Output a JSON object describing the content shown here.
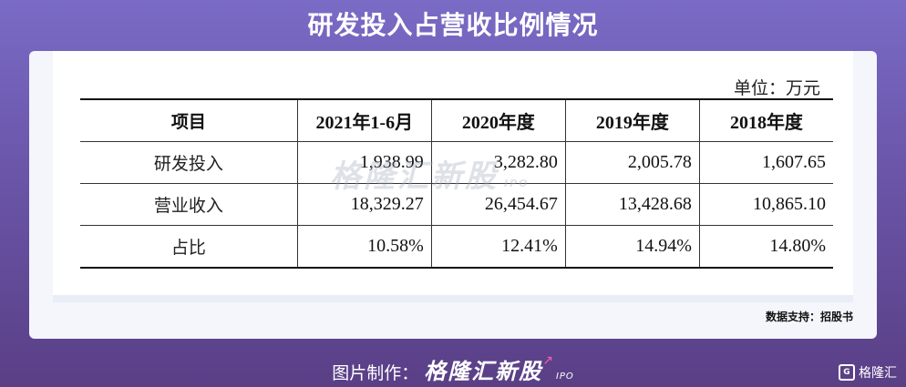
{
  "title": "研发投入占营收比例情况",
  "unit": "单位：万元",
  "table": {
    "headers": [
      "项目",
      "2021年1-6月",
      "2020年度",
      "2019年度",
      "2018年度"
    ],
    "rows": [
      {
        "label": "研发投入",
        "values": [
          "1,938.99",
          "3,282.80",
          "2,005.78",
          "1,607.65"
        ]
      },
      {
        "label": "营业收入",
        "values": [
          "18,329.27",
          "26,454.67",
          "13,428.68",
          "10,865.10"
        ]
      },
      {
        "label": "占比",
        "values": [
          "10.58%",
          "12.41%",
          "14.94%",
          "14.80%"
        ]
      }
    ]
  },
  "watermark": {
    "text": "格隆汇新股",
    "sub": "IPO"
  },
  "source": "数据支持：招股书",
  "footer": {
    "prefix": "图片制作：",
    "brand": "格隆汇新股",
    "sub": "IPO"
  },
  "corner_logo": {
    "text": "格隆汇"
  },
  "colors": {
    "background_top": "#7a6bc6",
    "background_bottom": "#5a3f86",
    "card": "#f4f6fb",
    "accent_arrow": "#ff5fa8"
  }
}
